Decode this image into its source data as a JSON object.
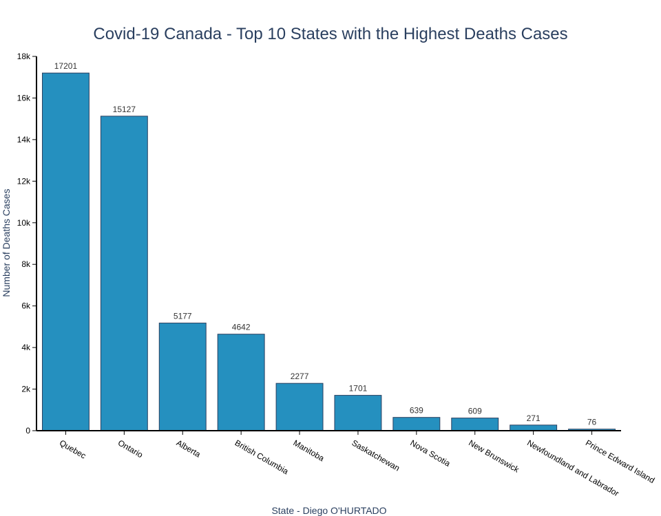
{
  "chart_data": {
    "type": "bar",
    "title": "Covid-19 Canada - Top 10 States with the Highest Deaths Cases",
    "xlabel": "State - Diego O'HURTADO",
    "ylabel": "Number of Deaths Cases",
    "categories": [
      "Quebec",
      "Ontario",
      "Alberta",
      "British Columbia",
      "Manitoba",
      "Saskatchewan",
      "Nova Scotia",
      "New Brunswick",
      "Newfoundland and Labrador",
      "Prince Edward Island"
    ],
    "values": [
      17201,
      15127,
      5177,
      4642,
      2277,
      1701,
      639,
      609,
      271,
      76
    ],
    "ylim": [
      0,
      18000
    ],
    "yticks": [
      0,
      2000,
      4000,
      6000,
      8000,
      10000,
      12000,
      14000,
      16000,
      18000
    ],
    "ytick_labels": [
      "0",
      "2k",
      "4k",
      "6k",
      "8k",
      "10k",
      "12k",
      "14k",
      "16k",
      "18k"
    ],
    "bar_color": "#2590bf",
    "grid": false,
    "legend": "none"
  }
}
